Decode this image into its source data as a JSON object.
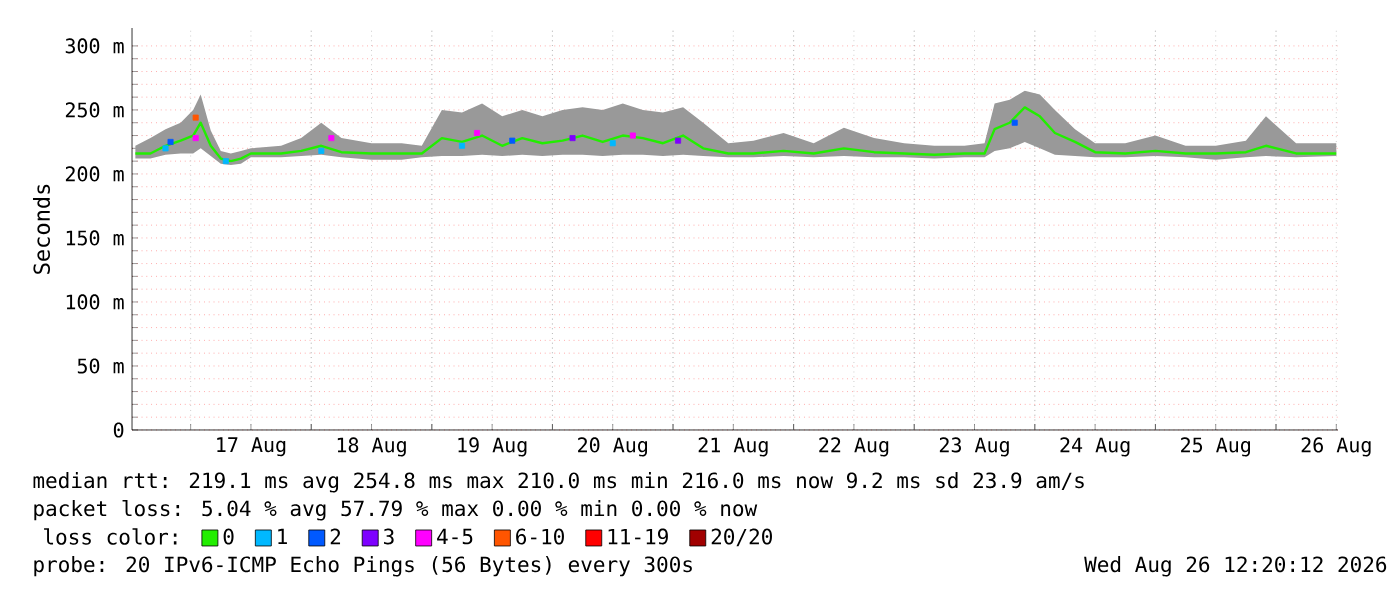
{
  "chart_data": {
    "type": "line",
    "ylabel": "Seconds",
    "legend_title": "loss color:",
    "legend": "bottom",
    "grid": true,
    "xlim": [
      "2026-08-16T12:20",
      "2026-08-26T12:20"
    ],
    "xticks": [
      {
        "value": "2026-08-17T12:00",
        "label": "17 Aug"
      },
      {
        "value": "2026-08-18T12:00",
        "label": "18 Aug"
      },
      {
        "value": "2026-08-19T12:00",
        "label": "19 Aug"
      },
      {
        "value": "2026-08-20T12:00",
        "label": "20 Aug"
      },
      {
        "value": "2026-08-21T12:00",
        "label": "21 Aug"
      },
      {
        "value": "2026-08-22T12:00",
        "label": "22 Aug"
      },
      {
        "value": "2026-08-23T12:00",
        "label": "23 Aug"
      },
      {
        "value": "2026-08-24T12:00",
        "label": "24 Aug"
      },
      {
        "value": "2026-08-25T12:00",
        "label": "25 Aug"
      },
      {
        "value": "2026-08-26T12:00",
        "label": "26 Aug"
      },
      {
        "value": "2026-08-17T00:00",
        "label": null
      },
      {
        "value": "2026-08-18T00:00",
        "label": null
      },
      {
        "value": "2026-08-19T00:00",
        "label": null
      },
      {
        "value": "2026-08-20T00:00",
        "label": null
      },
      {
        "value": "2026-08-21T00:00",
        "label": null
      },
      {
        "value": "2026-08-22T00:00",
        "label": null
      },
      {
        "value": "2026-08-23T00:00",
        "label": null
      },
      {
        "value": "2026-08-24T00:00",
        "label": null
      },
      {
        "value": "2026-08-25T00:00",
        "label": null
      },
      {
        "value": "2026-08-26T00:00",
        "label": null
      }
    ],
    "ylim": [
      0,
      314
    ],
    "yticks": [
      0,
      {
        "value": 50,
        "label": "50 m"
      },
      {
        "value": 100,
        "label": "100 m"
      },
      {
        "value": 150,
        "label": "150 m"
      },
      {
        "value": 200,
        "label": "200 m"
      },
      {
        "value": 250,
        "label": "250 m"
      },
      {
        "value": 300,
        "label": "300 m"
      }
    ],
    "series": [
      {
        "name": "0",
        "color": "#22ee00",
        "x": [
          "2026-08-16T13:00",
          "2026-08-16T16:00",
          "2026-08-16T19:00",
          "2026-08-16T22:00",
          "2026-08-17T00:30",
          "2026-08-17T02:00",
          "2026-08-17T04:00",
          "2026-08-17T06:00",
          "2026-08-17T08:00",
          "2026-08-17T10:00",
          "2026-08-17T12:00",
          "2026-08-17T18:00",
          "2026-08-17T22:00",
          "2026-08-18T02:00",
          "2026-08-18T06:00",
          "2026-08-18T12:00",
          "2026-08-18T18:00",
          "2026-08-18T22:00",
          "2026-08-19T02:00",
          "2026-08-19T06:00",
          "2026-08-19T10:00",
          "2026-08-19T14:00",
          "2026-08-19T18:00",
          "2026-08-19T22:00",
          "2026-08-20T02:00",
          "2026-08-20T06:00",
          "2026-08-20T10:00",
          "2026-08-20T14:00",
          "2026-08-20T18:00",
          "2026-08-20T22:00",
          "2026-08-21T02:00",
          "2026-08-21T06:00",
          "2026-08-21T11:00",
          "2026-08-21T16:00",
          "2026-08-21T22:00",
          "2026-08-22T04:00",
          "2026-08-22T10:00",
          "2026-08-22T16:00",
          "2026-08-22T22:00",
          "2026-08-23T04:00",
          "2026-08-23T10:00",
          "2026-08-23T14:00",
          "2026-08-23T16:00",
          "2026-08-23T19:00",
          "2026-08-23T22:00",
          "2026-08-24T01:00",
          "2026-08-24T04:00",
          "2026-08-24T08:00",
          "2026-08-24T12:00",
          "2026-08-24T18:00",
          "2026-08-25T00:00",
          "2026-08-25T06:00",
          "2026-08-25T12:00",
          "2026-08-25T18:00",
          "2026-08-25T22:00",
          "2026-08-26T04:00",
          "2026-08-26T12:00"
        ],
        "values": [
          216,
          216,
          222,
          226,
          230,
          240,
          222,
          212,
          210,
          212,
          216,
          216,
          218,
          222,
          217,
          216,
          216,
          216,
          228,
          225,
          230,
          222,
          228,
          224,
          226,
          230,
          225,
          230,
          228,
          224,
          230,
          220,
          216,
          216,
          218,
          216,
          220,
          217,
          216,
          215,
          216,
          216,
          235,
          240,
          252,
          245,
          232,
          225,
          217,
          216,
          218,
          216,
          216,
          217,
          222,
          216,
          216
        ],
        "lower": [
          212,
          212,
          215,
          216,
          216,
          220,
          214,
          208,
          207,
          208,
          213,
          213,
          214,
          215,
          213,
          211,
          211,
          213,
          214,
          214,
          215,
          214,
          215,
          214,
          215,
          215,
          214,
          215,
          215,
          214,
          215,
          214,
          213,
          213,
          214,
          213,
          214,
          213,
          213,
          212,
          213,
          213,
          218,
          220,
          225,
          220,
          215,
          214,
          213,
          213,
          214,
          213,
          211,
          213,
          214,
          213,
          214
        ],
        "upper": [
          222,
          228,
          235,
          240,
          250,
          262,
          234,
          218,
          216,
          218,
          220,
          222,
          228,
          240,
          228,
          224,
          224,
          222,
          250,
          248,
          255,
          245,
          250,
          245,
          250,
          252,
          250,
          255,
          250,
          248,
          252,
          240,
          224,
          226,
          232,
          224,
          236,
          228,
          224,
          222,
          222,
          224,
          255,
          258,
          265,
          262,
          250,
          235,
          224,
          224,
          230,
          222,
          222,
          226,
          245,
          224,
          224
        ]
      },
      {
        "name": "1",
        "color": "#00b8ff",
        "type": "scatter",
        "marker": "square",
        "x": [
          "2026-08-16T19:00",
          "2026-08-17T07:00",
          "2026-08-18T02:00",
          "2026-08-19T06:00",
          "2026-08-20T12:00"
        ],
        "values": [
          220,
          210,
          218,
          222,
          224
        ]
      },
      {
        "name": "2",
        "color": "#0059ff",
        "type": "scatter",
        "marker": "square",
        "x": [
          "2026-08-16T20:00",
          "2026-08-19T16:00",
          "2026-08-23T20:00"
        ],
        "values": [
          225,
          226,
          240
        ]
      },
      {
        "name": "3",
        "color": "#7e00ff",
        "type": "scatter",
        "marker": "square",
        "x": [
          "2026-08-20T04:00",
          "2026-08-21T01:00"
        ],
        "values": [
          228,
          226
        ]
      },
      {
        "name": "4-5",
        "color": "#ff00ff",
        "type": "scatter",
        "marker": "square",
        "x": [
          "2026-08-17T01:00",
          "2026-08-18T04:00",
          "2026-08-19T09:00",
          "2026-08-20T16:00"
        ],
        "values": [
          228,
          228,
          232,
          230
        ]
      },
      {
        "name": "6-10",
        "color": "#ff5500",
        "type": "scatter",
        "marker": "square",
        "x": [
          "2026-08-17T01:00"
        ],
        "values": [
          244
        ]
      },
      {
        "name": "11-19",
        "color": "#ff0000",
        "type": "scatter",
        "marker": "square"
      },
      {
        "name": "20/20",
        "color": "#a10000",
        "type": "scatter",
        "marker": "square"
      }
    ],
    "annotations": [
      "median rtt: 219.1 ms avg 254.8 ms max 210.0 ms min 216.0 ms now 9.2 ms sd 23.9 am/s",
      "packet loss: 5.04 % avg 57.79 % max 0.00 % min 0.00 % now",
      "probe: 20 IPv6-ICMP Echo Pings (56 Bytes) every 300s",
      "Wed Aug 26 12:20:12 2026"
    ]
  }
}
